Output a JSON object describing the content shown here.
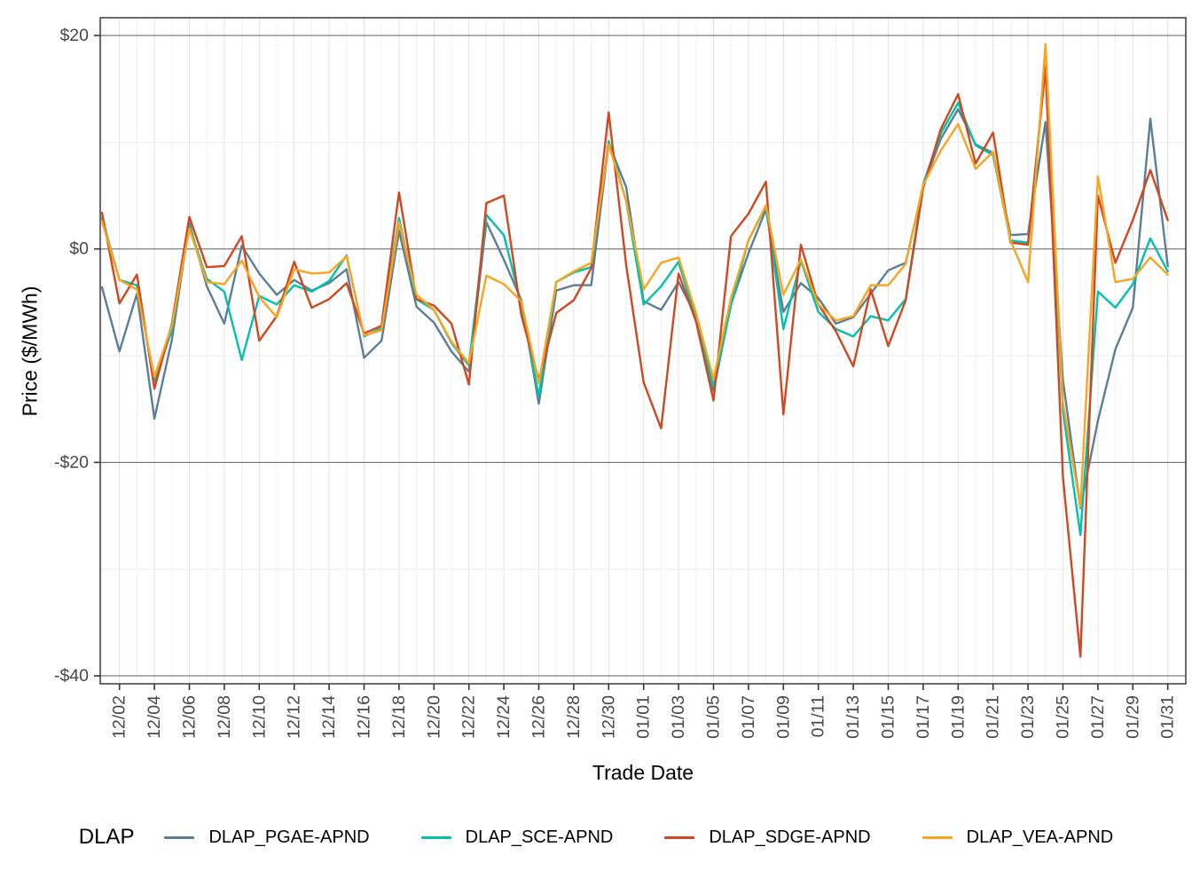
{
  "figure": {
    "y_axis_title": "Price ($/MWh)",
    "x_axis_title": "Trade Date",
    "legend_title": "DLAP"
  },
  "chart_data": {
    "type": "line",
    "title": "",
    "xlabel": "Trade Date",
    "ylabel": "Price ($/MWh)",
    "legend_title": "DLAP",
    "legend_position": "bottom",
    "grid": true,
    "ylim": [
      -40,
      20
    ],
    "y_major_ticks": [
      {
        "label": "$20",
        "value": 20
      },
      {
        "label": "$0",
        "value": 0
      },
      {
        "label": "-$20",
        "value": -20
      },
      {
        "label": "-$40",
        "value": -40
      }
    ],
    "y_minor_gridlines": [
      10,
      -10,
      -30
    ],
    "x_tick_every_days": 2,
    "x": [
      "12/01",
      "12/02",
      "12/03",
      "12/04",
      "12/05",
      "12/06",
      "12/07",
      "12/08",
      "12/09",
      "12/10",
      "12/11",
      "12/12",
      "12/13",
      "12/14",
      "12/15",
      "12/16",
      "12/17",
      "12/18",
      "12/19",
      "12/20",
      "12/21",
      "12/22",
      "12/23",
      "12/24",
      "12/25",
      "12/26",
      "12/27",
      "12/28",
      "12/29",
      "12/30",
      "12/31",
      "01/01",
      "01/02",
      "01/03",
      "01/04",
      "01/05",
      "01/06",
      "01/07",
      "01/08",
      "01/09",
      "01/10",
      "01/11",
      "01/12",
      "01/13",
      "01/14",
      "01/15",
      "01/16",
      "01/17",
      "01/18",
      "01/19",
      "01/20",
      "01/21",
      "01/22",
      "01/23",
      "01/24",
      "01/25",
      "01/26",
      "01/27",
      "01/28",
      "01/29",
      "01/30",
      "01/31"
    ],
    "series": [
      {
        "name": "DLAP_PGAE-APND",
        "color": "#5A7E96",
        "values": [
          -3.6,
          -9.6,
          -4.2,
          -15.9,
          -8.5,
          2.4,
          -3.5,
          -7.0,
          0.3,
          -2.3,
          -4.3,
          -2.9,
          -3.9,
          -3.2,
          -1.9,
          -10.2,
          -8.6,
          1.7,
          -5.4,
          -6.9,
          -9.6,
          -11.5,
          2.5,
          -1.0,
          -4.8,
          -14.5,
          -3.9,
          -3.4,
          -3.4,
          9.9,
          5.8,
          -4.9,
          -5.7,
          -3.1,
          -6.3,
          -13.3,
          -5.2,
          -0.4,
          3.7,
          -5.9,
          -3.2,
          -4.6,
          -7.0,
          -6.4,
          -4.2,
          -2.0,
          -1.3,
          5.9,
          10.3,
          13.1,
          9.8,
          9.0,
          1.3,
          1.4,
          11.9,
          -12.3,
          -24.3,
          -16.1,
          -9.4,
          -5.5,
          12.2,
          -1.6
        ]
      },
      {
        "name": "DLAP_SCE-APND",
        "color": "#00C1AE",
        "values": [
          2.9,
          -2.9,
          -3.4,
          -12.4,
          -7.6,
          2.1,
          -2.8,
          -4.0,
          -10.4,
          -4.4,
          -5.2,
          -3.4,
          -4.0,
          -3.0,
          -0.6,
          -8.2,
          -7.4,
          2.9,
          -4.7,
          -5.7,
          -8.8,
          -10.9,
          3.2,
          1.3,
          -5.2,
          -13.8,
          -3.1,
          -2.2,
          -1.7,
          10.1,
          4.5,
          -5.2,
          -3.5,
          -1.2,
          -6.7,
          -12.9,
          -5.3,
          0.8,
          4.0,
          -7.5,
          -1.1,
          -5.9,
          -7.5,
          -8.2,
          -6.3,
          -6.7,
          -4.7,
          6.1,
          10.8,
          13.7,
          9.7,
          8.8,
          0.8,
          0.6,
          17.2,
          -15.2,
          -26.8,
          -4.0,
          -5.5,
          -3.3,
          1.0,
          -2.1
        ]
      },
      {
        "name": "DLAP_SDGE-APND",
        "color": "#D04720",
        "values": [
          3.4,
          -5.1,
          -2.4,
          -13.1,
          -7.0,
          3.0,
          -1.7,
          -1.6,
          1.2,
          -8.6,
          -6.3,
          -1.2,
          -5.5,
          -4.7,
          -3.2,
          -7.9,
          -7.2,
          5.3,
          -4.7,
          -5.3,
          -7.0,
          -12.7,
          4.3,
          5.0,
          -6.2,
          -12.3,
          -6.0,
          -4.8,
          -1.8,
          12.8,
          -1.5,
          -12.5,
          -16.8,
          -2.3,
          -6.8,
          -14.2,
          1.2,
          3.3,
          6.3,
          -15.5,
          0.4,
          -5.2,
          -7.7,
          -11.0,
          -3.8,
          -9.1,
          -4.8,
          5.7,
          11.2,
          14.5,
          8.0,
          10.9,
          0.6,
          0.4,
          17.0,
          -21.4,
          -38.2,
          5.0,
          -1.3,
          2.7,
          7.4,
          2.7
        ]
      },
      {
        "name": "DLAP_VEA-APND",
        "color": "#F8A41E",
        "values": [
          2.6,
          -2.9,
          -3.8,
          -12.0,
          -7.2,
          1.9,
          -3.1,
          -3.3,
          -1.1,
          -4.5,
          -6.4,
          -1.9,
          -2.3,
          -2.2,
          -0.7,
          -8.1,
          -7.6,
          2.5,
          -4.3,
          -5.7,
          -8.7,
          -10.7,
          -2.5,
          -3.3,
          -4.9,
          -12.6,
          -3.1,
          -2.1,
          -1.3,
          9.8,
          4.5,
          -3.8,
          -1.3,
          -0.8,
          -6.0,
          -12.2,
          -4.6,
          0.8,
          4.1,
          -4.3,
          -1.0,
          -5.2,
          -6.7,
          -6.3,
          -3.4,
          -3.4,
          -1.4,
          6.0,
          9.2,
          11.7,
          7.5,
          9.1,
          0.8,
          -3.1,
          19.2,
          -14.4,
          -24.2,
          6.8,
          -3.1,
          -2.8,
          -0.8,
          -2.4
        ]
      }
    ]
  }
}
